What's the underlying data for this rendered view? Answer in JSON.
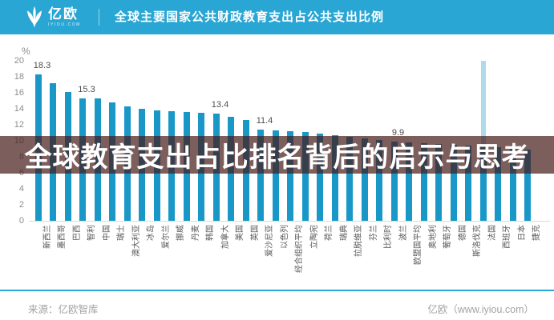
{
  "header": {
    "logo_text": "亿欧",
    "logo_sub": "IYIOU.COM",
    "title": "全球主要国家公共财政教育支出占公共支出比例"
  },
  "overlay": {
    "headline": "全球教育支出占比排名背后的启示与思考"
  },
  "footer": {
    "source": "来源：亿欧智库",
    "site": "亿欧（www.iyiou.com）"
  },
  "colors": {
    "header_bg": "#2aa6d4",
    "bar": "#1998c8",
    "banner_overlay": "rgba(68,26,24,0.70)",
    "accent_line": "#2aa6d4",
    "headline_text": "#ffffff"
  },
  "chart_data": {
    "type": "bar",
    "title": "全球主要国家公共财政教育支出占公共支出比例",
    "unit": "%",
    "ylabel": "%",
    "ylim": [
      0,
      20
    ],
    "yticks": [
      0,
      2,
      4,
      6,
      8,
      10,
      12,
      14,
      16,
      18,
      20
    ],
    "grid": false,
    "legend": null,
    "categories": [
      "新西兰",
      "墨西哥",
      "巴西",
      "智利",
      "中国",
      "瑞士",
      "澳大利亚",
      "冰岛",
      "爱尔兰",
      "挪威",
      "丹麦",
      "韩国",
      "加拿大",
      "美国",
      "英国",
      "爱沙尼亚",
      "以色列",
      "经合组织平均",
      "立陶宛",
      "荷兰",
      "瑞典",
      "拉脱维亚",
      "芬兰",
      "比利时",
      "波兰",
      "欧盟国平均",
      "奥地利",
      "葡萄牙",
      "德国",
      "斯洛伐克",
      "法国",
      "西班牙",
      "日本",
      "捷克"
    ],
    "values": [
      18.3,
      17.2,
      16.1,
      15.3,
      15.3,
      14.8,
      14.3,
      14.0,
      13.8,
      13.7,
      13.6,
      13.5,
      13.4,
      13.0,
      12.6,
      11.4,
      11.3,
      11.2,
      11.1,
      10.9,
      10.7,
      10.5,
      10.3,
      10.1,
      9.9,
      9.8,
      9.7,
      9.6,
      9.5,
      9.4,
      9.3,
      9.2,
      9.1,
      8.9
    ],
    "value_labels_shown": [
      {
        "index": 0,
        "category": "新西兰",
        "label": "18.3"
      },
      {
        "index": 3,
        "category": "智利",
        "label": "15.3"
      },
      {
        "index": 12,
        "category": "加拿大",
        "label": "13.4"
      },
      {
        "index": 15,
        "category": "爱沙尼亚",
        "label": "11.4"
      },
      {
        "index": 24,
        "category": "波兰",
        "label": "9.9"
      }
    ],
    "highlighted_category": "法国"
  }
}
